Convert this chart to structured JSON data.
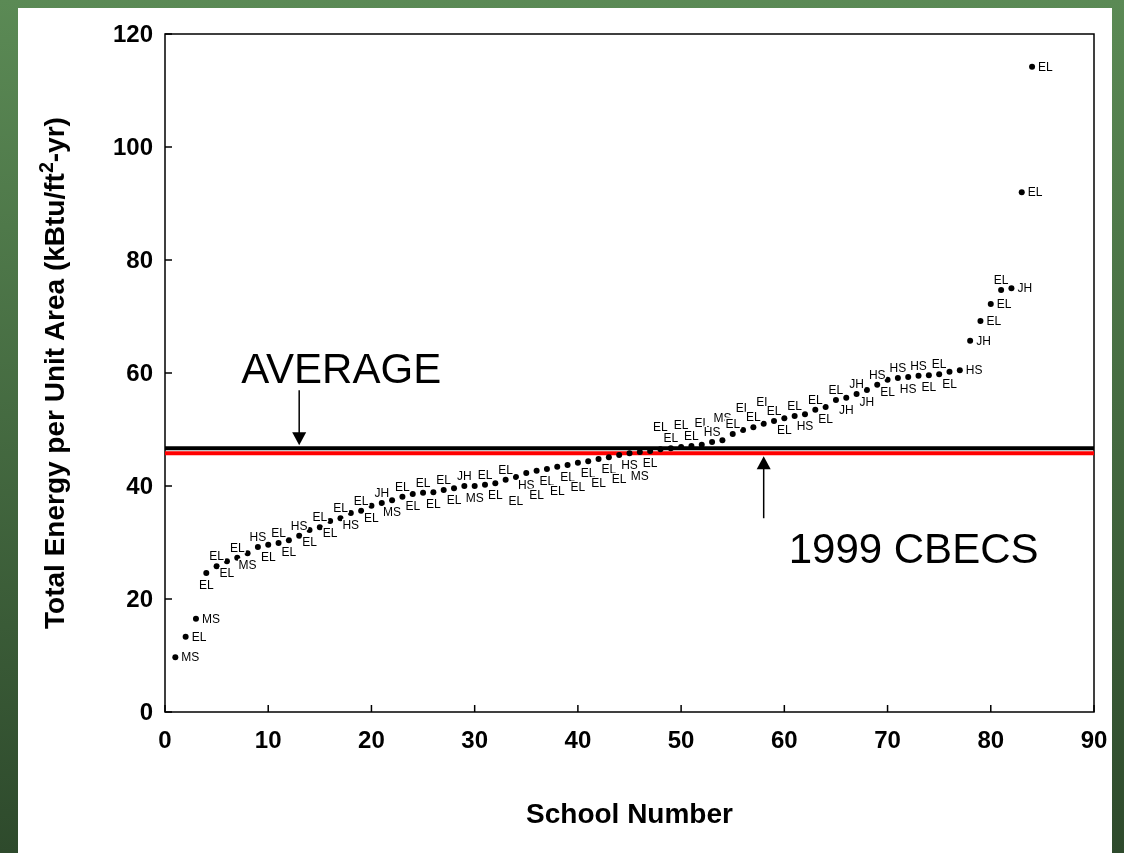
{
  "chart_data": {
    "type": "scatter",
    "xlabel": "School Number",
    "ylabel": "Total Energy per Unit Area (kBtu/ft$^{2}$-yr)",
    "xlim": [
      0,
      90
    ],
    "xticks": [
      0,
      10,
      20,
      30,
      40,
      50,
      60,
      70,
      80,
      90
    ],
    "ylim": [
      0,
      120
    ],
    "yticks": [
      0,
      20,
      40,
      60,
      80,
      100,
      120
    ],
    "grid": false,
    "marker": "circle",
    "ref_lines": [
      {
        "axis": "y",
        "value": 46.7,
        "color": "#000000"
      },
      {
        "axis": "y",
        "value": 45.8,
        "color": "#ff0000"
      }
    ],
    "annotations": [
      {
        "text": "AVERAGE",
        "x": 13,
        "y": 46.7
      },
      {
        "text": "1999 CBECS",
        "x": 58,
        "y": 45.8
      }
    ],
    "series": [
      {
        "color": "#000000",
        "x": [
          1,
          2,
          3,
          4,
          5,
          6,
          7,
          8,
          9,
          10,
          11,
          12,
          13,
          14,
          15,
          16,
          17,
          18,
          19,
          20,
          21,
          22,
          23,
          24,
          25,
          26,
          27,
          28,
          29,
          30,
          31,
          32,
          33,
          34,
          35,
          36,
          37,
          38,
          39,
          40,
          41,
          42,
          43,
          44,
          45,
          46,
          47,
          48,
          49,
          50,
          51,
          52,
          53,
          54,
          55,
          56,
          57,
          58,
          59,
          60,
          61,
          62,
          63,
          64,
          65,
          66,
          67,
          68,
          69,
          70,
          71,
          72,
          73,
          74,
          75,
          76,
          77,
          78,
          79,
          80,
          81,
          82,
          83,
          84
        ],
        "values": [
          9.7,
          13.3,
          16.5,
          24.6,
          25.8,
          26.7,
          27.3,
          28.1,
          29.2,
          29.6,
          29.9,
          30.4,
          31.2,
          32.2,
          32.7,
          33.8,
          34.3,
          35.2,
          35.6,
          36.5,
          37,
          37.5,
          38.1,
          38.6,
          38.8,
          38.9,
          39.3,
          39.6,
          40,
          40,
          40.2,
          40.5,
          41.1,
          41.6,
          42.3,
          42.7,
          43,
          43.4,
          43.7,
          44.1,
          44.4,
          44.8,
          45.1,
          45.5,
          45.8,
          46,
          46.2,
          46.5,
          46.7,
          46.9,
          47.1,
          47.3,
          47.8,
          48.1,
          49.2,
          49.9,
          50.4,
          51,
          51.5,
          52,
          52.4,
          52.7,
          53.5,
          54,
          55.2,
          55.6,
          56.3,
          57,
          57.9,
          58.8,
          59.1,
          59.3,
          59.5,
          59.6,
          59.8,
          60.2,
          60.5,
          65.7,
          69.2,
          72.2,
          74.7,
          75,
          92,
          114.2
        ],
        "value_labels": [
          "MS",
          "EL",
          "MS",
          "EL",
          "EL",
          "EL",
          "EL",
          "MS",
          "HS",
          "EL",
          "EL",
          "EL",
          "HS",
          "EL",
          "EL",
          "EL",
          "EL",
          "HS",
          "EL",
          "EL",
          "JH",
          "MS",
          "EL",
          "EL",
          "EL",
          "EL",
          "EL",
          "EL",
          "JH",
          "MS",
          "EL",
          "EL",
          "EL",
          "EL",
          "HS",
          "EL",
          "EL",
          "EL",
          "EL",
          "EL",
          "EL",
          "EL",
          "EL",
          "EL",
          "HS",
          "MS",
          "EL",
          "EL",
          "EL",
          "EL",
          "EL",
          "EL",
          "HS",
          "MS",
          "EL",
          "EL",
          "EL",
          "EL",
          "EL",
          "EL",
          "EL",
          "HS",
          "EL",
          "EL",
          "EL",
          "JH",
          "JH",
          "JH",
          "HS",
          "EL",
          "HS",
          "HS",
          "HS",
          "EL",
          "EL",
          "EL",
          "HS",
          "JH",
          "EL",
          "EL",
          "EL",
          "JH",
          "EL",
          "EL"
        ]
      }
    ]
  }
}
